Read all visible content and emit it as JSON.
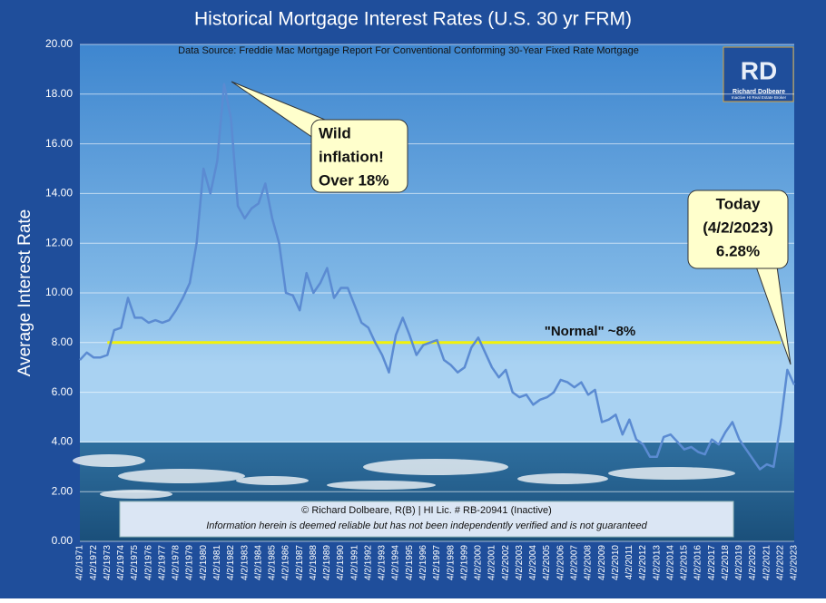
{
  "chart_data": {
    "type": "line",
    "title": "Historical Mortgage Interest Rates (U.S. 30 yr FRM)",
    "subtitle": "Data Source:  Freddie Mac Mortgage Report For Conventional Conforming 30-Year Fixed Rate Mortgage",
    "y_label": "Average Interest Rate",
    "categories": [
      "4/2/1971",
      null,
      "4/2/1972",
      null,
      "4/2/1973",
      null,
      "4/2/1974",
      null,
      "4/2/1975",
      null,
      "4/2/1976",
      null,
      "4/2/1977",
      null,
      "4/2/1978",
      null,
      "4/2/1979",
      null,
      "4/2/1980",
      null,
      "4/2/1981",
      null,
      "4/2/1982",
      null,
      "4/2/1983",
      null,
      "4/2/1984",
      null,
      "4/2/1985",
      null,
      "4/2/1986",
      null,
      "4/2/1987",
      null,
      "4/2/1988",
      null,
      "4/2/1989",
      null,
      "4/2/1990",
      null,
      "4/2/1991",
      null,
      "4/2/1992",
      null,
      "4/2/1993",
      null,
      "4/2/1994",
      null,
      "4/2/1995",
      null,
      "4/2/1996",
      null,
      "4/2/1997",
      null,
      "4/2/1998",
      null,
      "4/2/1999",
      null,
      "4/2/2000",
      null,
      "4/2/2001",
      null,
      "4/2/2002",
      null,
      "4/2/2003",
      null,
      "4/2/2004",
      null,
      "4/2/2005",
      null,
      "4/2/2006",
      null,
      "4/2/2007",
      null,
      "4/2/2008",
      null,
      "4/2/2009",
      null,
      "4/2/2010",
      null,
      "4/2/2011",
      null,
      "4/2/2012",
      null,
      "4/2/2013",
      null,
      "4/2/2014",
      null,
      "4/2/2015",
      null,
      "4/2/2016",
      null,
      "4/2/2017",
      null,
      "4/2/2018",
      null,
      "4/2/2019",
      null,
      "4/2/2020",
      null,
      "4/2/2021",
      null,
      "4/2/2022",
      null,
      "4/2/2023"
    ],
    "values": [
      7.3,
      7.6,
      7.4,
      7.4,
      7.5,
      8.5,
      8.6,
      9.8,
      9.0,
      9.0,
      8.8,
      8.9,
      8.8,
      8.9,
      9.3,
      9.8,
      10.4,
      12.0,
      15.0,
      14.0,
      15.3,
      18.4,
      17.0,
      13.5,
      13.0,
      13.4,
      13.6,
      14.4,
      13.0,
      12.0,
      10.0,
      9.9,
      9.3,
      10.8,
      10.0,
      10.4,
      11.0,
      9.8,
      10.2,
      10.2,
      9.5,
      8.8,
      8.6,
      8.0,
      7.5,
      6.8,
      8.3,
      9.0,
      8.3,
      7.5,
      7.9,
      8.0,
      8.1,
      7.3,
      7.1,
      6.8,
      7.0,
      7.8,
      8.2,
      7.6,
      7.0,
      6.6,
      6.9,
      6.0,
      5.8,
      5.9,
      5.5,
      5.7,
      5.8,
      6.0,
      6.5,
      6.4,
      6.2,
      6.4,
      5.9,
      6.1,
      4.8,
      4.9,
      5.1,
      4.3,
      4.9,
      4.1,
      3.9,
      3.4,
      3.4,
      4.2,
      4.3,
      4.0,
      3.7,
      3.8,
      3.6,
      3.5,
      4.1,
      3.9,
      4.4,
      4.8,
      4.1,
      3.7,
      3.3,
      2.9,
      3.1,
      3.0,
      4.7,
      6.9,
      6.3
    ],
    "color": "#5b8bd2",
    "ylim": [
      0,
      20
    ],
    "yticks": [
      {
        "value": 0,
        "label": "0.00"
      },
      {
        "value": 2,
        "label": "2.00"
      },
      {
        "value": 4,
        "label": "4.00"
      },
      {
        "value": 6,
        "label": "6.00"
      },
      {
        "value": 8,
        "label": "8.00"
      },
      {
        "value": 10,
        "label": "10.00"
      },
      {
        "value": 12,
        "label": "12.00"
      },
      {
        "value": 14,
        "label": "14.00"
      },
      {
        "value": 16,
        "label": "16.00"
      },
      {
        "value": 18,
        "label": "18.00"
      },
      {
        "value": 20,
        "label": "20.00"
      }
    ],
    "grid": true,
    "reference_line": {
      "value": 8,
      "label": "\"Normal\"  ~8%",
      "color": "#f2f20a"
    },
    "annotations": [
      {
        "lines": [
          "Wild",
          "inflation!",
          "Over 18%"
        ]
      },
      {
        "lines": [
          "Today",
          "(4/2/2023)",
          "6.28%"
        ]
      }
    ],
    "footer": [
      "© Richard Dolbeare, R(B)  | HI Lic. # RB-20941 (Inactive)",
      "Information herein is deemed reliable but has not been independently verified and is not guaranteed"
    ],
    "logo": {
      "initials": "RD",
      "name": "Richard Dolbeare",
      "tagline": "Inactive HI Real Estate Broker"
    }
  }
}
